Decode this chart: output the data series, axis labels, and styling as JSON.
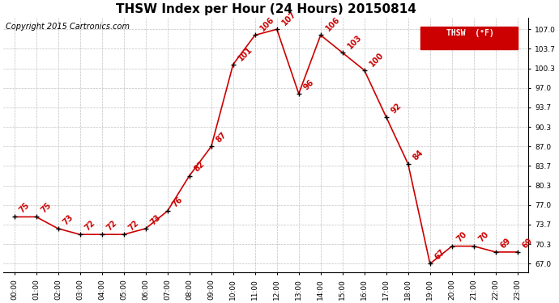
{
  "title": "THSW Index per Hour (24 Hours) 20150814",
  "copyright": "Copyright 2015 Cartronics.com",
  "legend_label": "THSW  (°F)",
  "hours": [
    0,
    1,
    2,
    3,
    4,
    5,
    6,
    7,
    8,
    9,
    10,
    11,
    12,
    13,
    14,
    15,
    16,
    17,
    18,
    19,
    20,
    21,
    22,
    23
  ],
  "values": [
    75,
    75,
    73,
    72,
    72,
    72,
    73,
    76,
    82,
    87,
    101,
    106,
    107,
    96,
    106,
    103,
    100,
    92,
    84,
    67,
    70,
    70,
    69,
    69
  ],
  "x_labels": [
    "00:00",
    "01:00",
    "02:00",
    "03:00",
    "04:00",
    "05:00",
    "06:00",
    "07:00",
    "08:00",
    "09:00",
    "10:00",
    "11:00",
    "12:00",
    "13:00",
    "14:00",
    "15:00",
    "16:00",
    "17:00",
    "18:00",
    "19:00",
    "20:00",
    "21:00",
    "22:00",
    "23:00"
  ],
  "y_ticks": [
    67.0,
    70.3,
    73.7,
    77.0,
    80.3,
    83.7,
    87.0,
    90.3,
    93.7,
    97.0,
    100.3,
    103.7,
    107.0
  ],
  "ylim": [
    65.5,
    109.0
  ],
  "xlim": [
    -0.5,
    23.5
  ],
  "line_color": "#cc0000",
  "marker_color": "#000000",
  "bg_color": "#ffffff",
  "grid_color": "#c0c0c0",
  "title_fontsize": 11,
  "copyright_fontsize": 7,
  "annotation_fontsize": 7,
  "tick_fontsize": 6.5
}
